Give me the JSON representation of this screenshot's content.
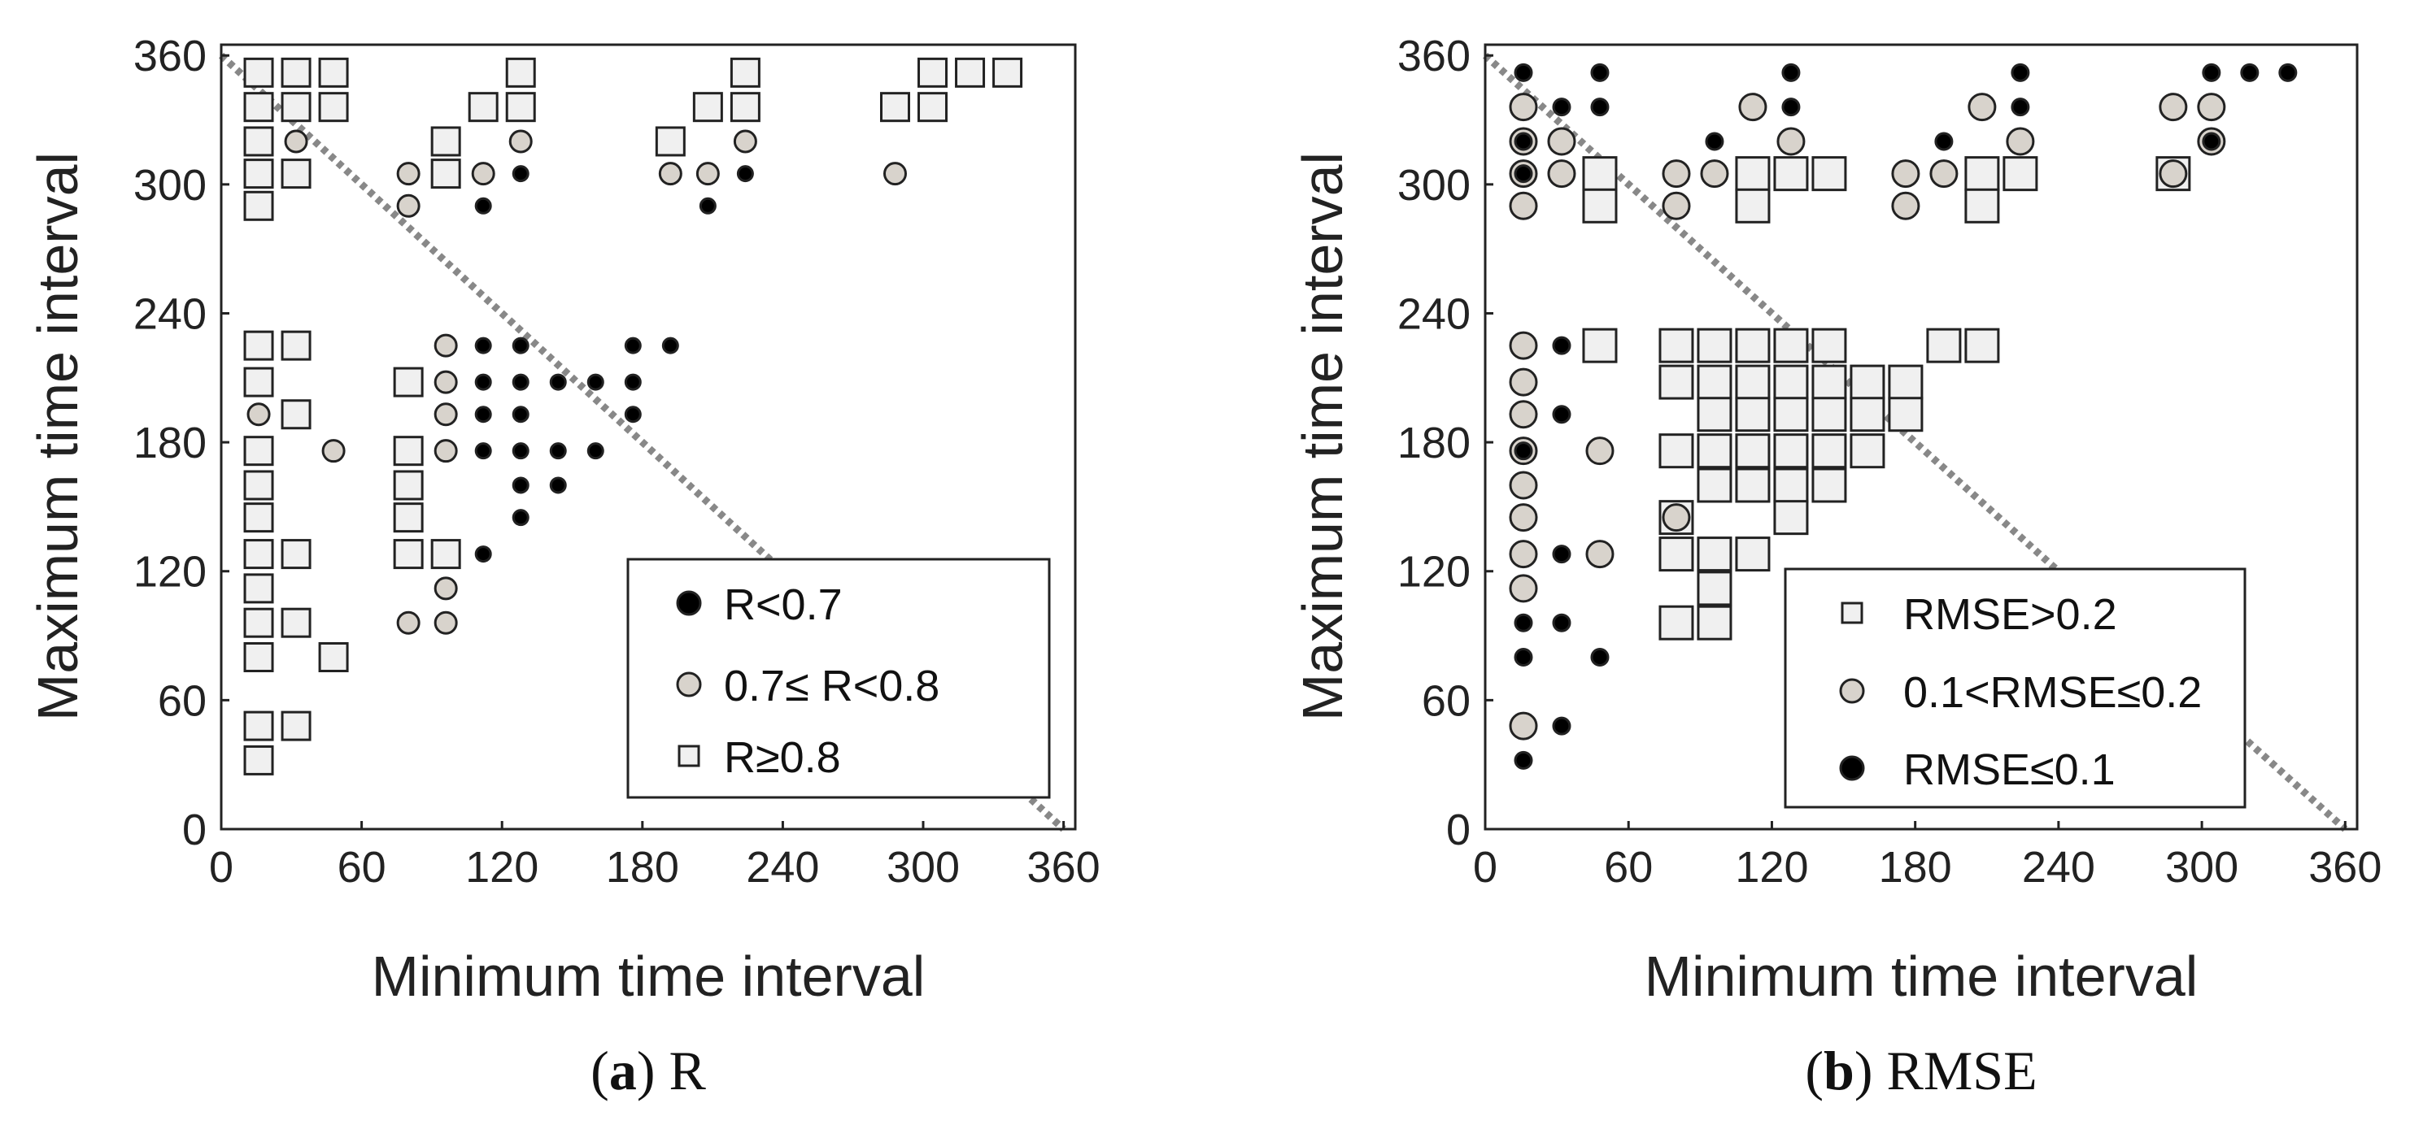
{
  "colors": {
    "low": "#000000",
    "mid": "#d8d3cc",
    "high": "#f0f0f0",
    "edge": "#222222",
    "diagonal": "#888888"
  },
  "chart_data": [
    {
      "type": "scatter",
      "title": "",
      "xlabel": "Minimum time interval",
      "ylabel": "Maximum time interval",
      "xlim": [
        0,
        365
      ],
      "ylim": [
        0,
        365
      ],
      "xticks": [
        "0",
        "60",
        "120",
        "180",
        "240",
        "300",
        "360"
      ],
      "yticks": [
        "0",
        "60",
        "120",
        "180",
        "240",
        "300",
        "360"
      ],
      "grid": false,
      "diagonal": {
        "from": [
          0,
          360
        ],
        "to": [
          360,
          0
        ],
        "style": "dotted"
      },
      "caption": {
        "label": "a",
        "text": "R"
      },
      "legend_position": "lower-right",
      "legend": [
        {
          "marker": "circle",
          "color": "low",
          "label": "R<0.7"
        },
        {
          "marker": "circle",
          "color": "mid",
          "label": "0.7≤ R<0.8"
        },
        {
          "marker": "square",
          "color": "high",
          "label": "R≥0.8"
        }
      ],
      "series": [
        {
          "name": "R<0.7",
          "marker": "circle",
          "color": "low",
          "points": [
            [
              128,
              305
            ],
            [
              224,
              305
            ],
            [
              112,
              290
            ],
            [
              208,
              290
            ],
            [
              112,
              225
            ],
            [
              128,
              225
            ],
            [
              176,
              225
            ],
            [
              192,
              225
            ],
            [
              112,
              208
            ],
            [
              128,
              208
            ],
            [
              144,
              208
            ],
            [
              160,
              208
            ],
            [
              176,
              208
            ],
            [
              112,
              193
            ],
            [
              128,
              193
            ],
            [
              176,
              193
            ],
            [
              112,
              176
            ],
            [
              128,
              176
            ],
            [
              144,
              176
            ],
            [
              160,
              176
            ],
            [
              128,
              160
            ],
            [
              144,
              160
            ],
            [
              128,
              145
            ],
            [
              112,
              128
            ]
          ]
        },
        {
          "name": "0.7≤ R<0.8",
          "marker": "circle",
          "color": "mid",
          "points": [
            [
              32,
              320
            ],
            [
              128,
              320
            ],
            [
              224,
              320
            ],
            [
              80,
              305
            ],
            [
              112,
              305
            ],
            [
              192,
              305
            ],
            [
              208,
              305
            ],
            [
              288,
              305
            ],
            [
              80,
              290
            ],
            [
              96,
              225
            ],
            [
              96,
              208
            ],
            [
              16,
              193
            ],
            [
              96,
              193
            ],
            [
              48,
              176
            ],
            [
              96,
              176
            ],
            [
              96,
              112
            ],
            [
              80,
              96
            ],
            [
              96,
              96
            ]
          ]
        },
        {
          "name": "R≥0.8",
          "marker": "square",
          "color": "high",
          "points": [
            [
              16,
              352
            ],
            [
              32,
              352
            ],
            [
              48,
              352
            ],
            [
              128,
              352
            ],
            [
              224,
              352
            ],
            [
              304,
              352
            ],
            [
              320,
              352
            ],
            [
              336,
              352
            ],
            [
              16,
              336
            ],
            [
              32,
              336
            ],
            [
              48,
              336
            ],
            [
              112,
              336
            ],
            [
              128,
              336
            ],
            [
              208,
              336
            ],
            [
              224,
              336
            ],
            [
              288,
              336
            ],
            [
              304,
              336
            ],
            [
              16,
              320
            ],
            [
              96,
              320
            ],
            [
              192,
              320
            ],
            [
              16,
              305
            ],
            [
              32,
              305
            ],
            [
              96,
              305
            ],
            [
              16,
              290
            ],
            [
              16,
              225
            ],
            [
              32,
              225
            ],
            [
              16,
              208
            ],
            [
              80,
              208
            ],
            [
              32,
              193
            ],
            [
              16,
              176
            ],
            [
              80,
              176
            ],
            [
              16,
              160
            ],
            [
              80,
              160
            ],
            [
              16,
              145
            ],
            [
              80,
              145
            ],
            [
              16,
              128
            ],
            [
              32,
              128
            ],
            [
              80,
              128
            ],
            [
              96,
              128
            ],
            [
              16,
              112
            ],
            [
              16,
              96
            ],
            [
              32,
              96
            ],
            [
              48,
              80
            ],
            [
              16,
              80
            ],
            [
              16,
              48
            ],
            [
              32,
              48
            ],
            [
              16,
              32
            ]
          ]
        }
      ]
    },
    {
      "type": "scatter",
      "title": "",
      "xlabel": "Minimum time interval",
      "ylabel": "Maximum time interval",
      "xlim": [
        0,
        365
      ],
      "ylim": [
        0,
        365
      ],
      "xticks": [
        "0",
        "60",
        "120",
        "180",
        "240",
        "300",
        "360"
      ],
      "yticks": [
        "0",
        "60",
        "120",
        "180",
        "240",
        "300",
        "360"
      ],
      "grid": false,
      "diagonal": {
        "from": [
          0,
          360
        ],
        "to": [
          360,
          0
        ],
        "style": "dotted"
      },
      "caption": {
        "label": "b",
        "text": "RMSE"
      },
      "legend_position": "lower-right",
      "legend": [
        {
          "marker": "square",
          "color": "high",
          "label": "RMSE>0.2"
        },
        {
          "marker": "circle",
          "color": "mid",
          "label": "0.1<RMSE≤0.2"
        },
        {
          "marker": "circle",
          "color": "low",
          "label": "RMSE≤0.1"
        }
      ],
      "series": [
        {
          "name": "RMSE>0.2",
          "marker": "square",
          "color": "high",
          "points": [
            [
              48,
              305
            ],
            [
              112,
              305
            ],
            [
              128,
              305
            ],
            [
              144,
              305
            ],
            [
              208,
              305
            ],
            [
              224,
              305
            ],
            [
              48,
              290
            ],
            [
              112,
              290
            ],
            [
              208,
              290
            ],
            [
              288,
              305
            ],
            [
              48,
              225
            ],
            [
              80,
              225
            ],
            [
              96,
              225
            ],
            [
              112,
              225
            ],
            [
              128,
              225
            ],
            [
              144,
              225
            ],
            [
              192,
              225
            ],
            [
              208,
              225
            ],
            [
              80,
              208
            ],
            [
              96,
              208
            ],
            [
              112,
              208
            ],
            [
              128,
              208
            ],
            [
              144,
              208
            ],
            [
              160,
              208
            ],
            [
              176,
              208
            ],
            [
              96,
              193
            ],
            [
              112,
              193
            ],
            [
              128,
              193
            ],
            [
              144,
              193
            ],
            [
              160,
              193
            ],
            [
              176,
              193
            ],
            [
              80,
              176
            ],
            [
              96,
              176
            ],
            [
              112,
              176
            ],
            [
              128,
              176
            ],
            [
              144,
              176
            ],
            [
              160,
              176
            ],
            [
              96,
              160
            ],
            [
              112,
              160
            ],
            [
              128,
              160
            ],
            [
              144,
              160
            ],
            [
              80,
              145
            ],
            [
              128,
              145
            ],
            [
              80,
              128
            ],
            [
              96,
              128
            ],
            [
              112,
              128
            ],
            [
              96,
              112
            ],
            [
              80,
              96
            ],
            [
              96,
              96
            ]
          ]
        },
        {
          "name": "0.1<RMSE≤0.2",
          "marker": "circle",
          "color": "mid",
          "points": [
            [
              16,
              336
            ],
            [
              112,
              336
            ],
            [
              208,
              336
            ],
            [
              288,
              336
            ],
            [
              304,
              336
            ],
            [
              16,
              320
            ],
            [
              32,
              320
            ],
            [
              128,
              320
            ],
            [
              224,
              320
            ],
            [
              304,
              320
            ],
            [
              16,
              305
            ],
            [
              32,
              305
            ],
            [
              80,
              305
            ],
            [
              96,
              305
            ],
            [
              176,
              305
            ],
            [
              192,
              305
            ],
            [
              288,
              305
            ],
            [
              16,
              290
            ],
            [
              80,
              290
            ],
            [
              176,
              290
            ],
            [
              16,
              225
            ],
            [
              16,
              208
            ],
            [
              16,
              193
            ],
            [
              16,
              176
            ],
            [
              16,
              160
            ],
            [
              16,
              145
            ],
            [
              80,
              145
            ],
            [
              16,
              128
            ],
            [
              48,
              128
            ],
            [
              16,
              112
            ],
            [
              48,
              176
            ],
            [
              16,
              48
            ]
          ]
        },
        {
          "name": "RMSE≤0.1",
          "marker": "circle",
          "color": "low",
          "points": [
            [
              16,
              352
            ],
            [
              48,
              352
            ],
            [
              128,
              352
            ],
            [
              224,
              352
            ],
            [
              304,
              352
            ],
            [
              320,
              352
            ],
            [
              336,
              352
            ],
            [
              32,
              336
            ],
            [
              48,
              336
            ],
            [
              128,
              336
            ],
            [
              224,
              336
            ],
            [
              16,
              320
            ],
            [
              96,
              320
            ],
            [
              192,
              320
            ],
            [
              304,
              320
            ],
            [
              16,
              305
            ],
            [
              32,
              225
            ],
            [
              16,
              176
            ],
            [
              32,
              193
            ],
            [
              32,
              128
            ],
            [
              16,
              96
            ],
            [
              32,
              96
            ],
            [
              16,
              80
            ],
            [
              48,
              80
            ],
            [
              32,
              48
            ],
            [
              16,
              32
            ]
          ]
        }
      ]
    }
  ]
}
